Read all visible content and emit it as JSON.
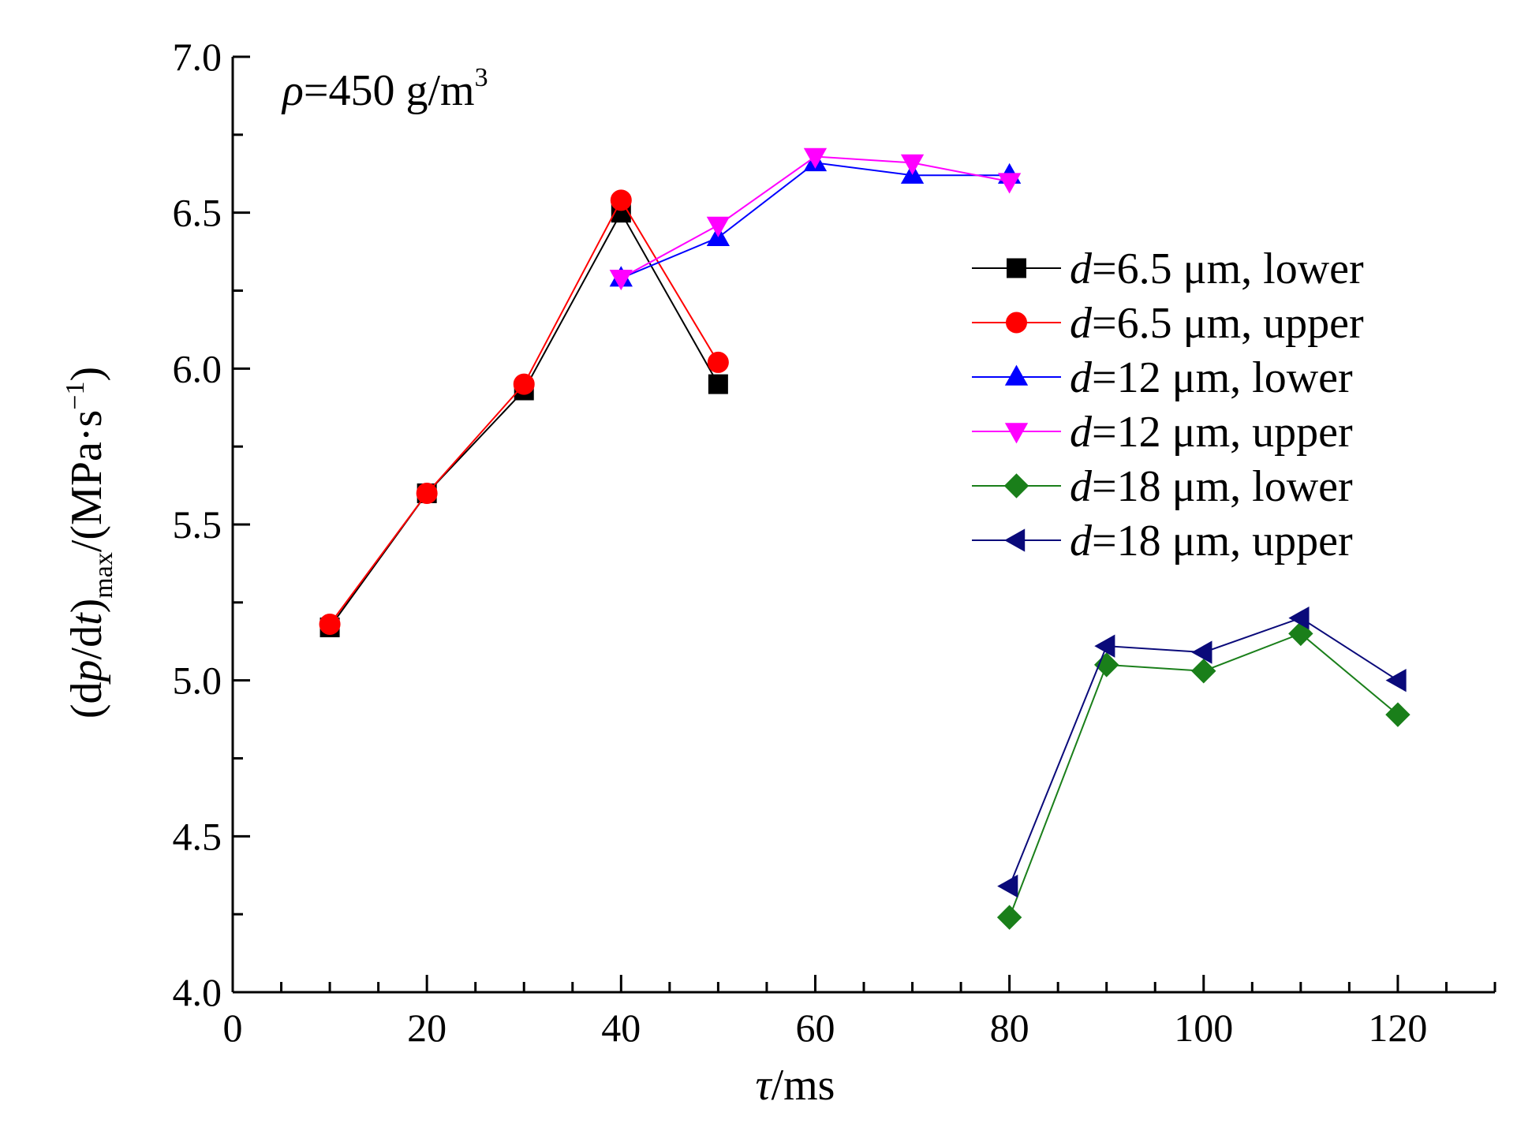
{
  "colors": {
    "d6_5_lower": "#000000",
    "d6_5_upper": "#ff0000",
    "d12_lower": "#0000ff",
    "d12_upper": "#ff00ff",
    "d18_lower": "#1a7f1a",
    "d18_upper": "#0a0a7a"
  },
  "chart_data": {
    "type": "line",
    "title": "",
    "annotation": {
      "rho_symbol": "ρ",
      "rest": "=450 g/m",
      "sup": "3"
    },
    "xlabel": {
      "symbol": "τ",
      "rest": "/ms"
    },
    "ylabel": {
      "p1": "(d",
      "p_sym": "p",
      "p2": "/d",
      "t_sym": "t",
      "p3": ")",
      "sub": "max",
      "p4": "/(MPa·s",
      "sup": "−1",
      "p5": ")"
    },
    "xlim": [
      0,
      130
    ],
    "ylim": [
      4.0,
      7.0
    ],
    "xticks": [
      "0",
      "20",
      "40",
      "60",
      "80",
      "100",
      "120"
    ],
    "yticks": [
      "4.0",
      "4.5",
      "5.0",
      "5.5",
      "6.0",
      "6.5",
      "7.0"
    ],
    "legend_position": "right",
    "grid": false,
    "series": [
      {
        "name": "d=6.5 μm, lower",
        "label_italic": "d",
        "label_rest": "=6.5 μm, lower",
        "marker": "square",
        "x": [
          10,
          20,
          30,
          40,
          50
        ],
        "y": [
          5.17,
          5.6,
          5.93,
          6.5,
          5.95
        ]
      },
      {
        "name": "d=6.5 μm, upper",
        "label_italic": "d",
        "label_rest": "=6.5 μm, upper",
        "marker": "circle",
        "x": [
          10,
          20,
          30,
          40,
          50
        ],
        "y": [
          5.18,
          5.6,
          5.95,
          6.54,
          6.02
        ]
      },
      {
        "name": "d=12 μm, lower",
        "label_italic": "d",
        "label_rest": "=12 μm, lower",
        "marker": "triangle-up",
        "x": [
          40,
          50,
          60,
          70,
          80
        ],
        "y": [
          6.29,
          6.42,
          6.66,
          6.62,
          6.62
        ]
      },
      {
        "name": "d=12 μm, upper",
        "label_italic": "d",
        "label_rest": "=12 μm, upper",
        "marker": "triangle-down",
        "x": [
          40,
          50,
          60,
          70,
          80
        ],
        "y": [
          6.29,
          6.46,
          6.68,
          6.66,
          6.6
        ]
      },
      {
        "name": "d=18 μm, lower",
        "label_italic": "d",
        "label_rest": "=18 μm, lower",
        "marker": "diamond",
        "x": [
          80,
          90,
          100,
          110,
          120
        ],
        "y": [
          4.24,
          5.05,
          5.03,
          5.15,
          4.89
        ]
      },
      {
        "name": "d=18 μm, upper",
        "label_italic": "d",
        "label_rest": "=18 μm, upper",
        "marker": "triangle-left",
        "x": [
          80,
          90,
          100,
          110,
          120
        ],
        "y": [
          4.34,
          5.11,
          5.09,
          5.2,
          5.0
        ]
      }
    ]
  }
}
